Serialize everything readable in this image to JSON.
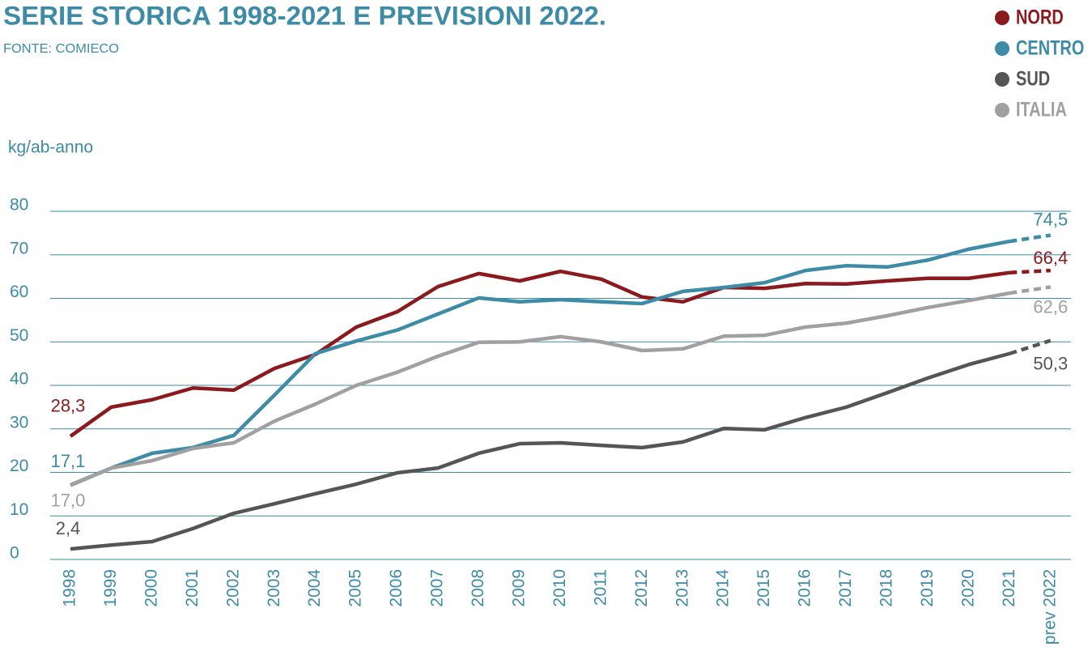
{
  "chart_data": {
    "type": "line",
    "title": "SERIE STORICA 1998-2021 E PREVISIONI 2022.",
    "subtitle": "FONTE: COMIECO",
    "y_label": "kg/ab-anno",
    "categories": [
      "1998",
      "1999",
      "2000",
      "2001",
      "2002",
      "2003",
      "2004",
      "2005",
      "2006",
      "2007",
      "2008",
      "2009",
      "2010",
      "2011",
      "2012",
      "2013",
      "2014",
      "2015",
      "2016",
      "2017",
      "2018",
      "2019",
      "2020",
      "2021",
      "prev 2022"
    ],
    "ylim": [
      0,
      80
    ],
    "yticks": [
      0,
      10,
      20,
      30,
      40,
      50,
      60,
      70,
      80
    ],
    "grid": true,
    "legend": "top-right",
    "dashed_last_segment": true,
    "series": [
      {
        "name": "NORD",
        "color": "#8b1a1e",
        "values": [
          28.3,
          35.0,
          36.7,
          39.4,
          38.9,
          43.9,
          47.1,
          53.4,
          56.9,
          62.7,
          65.7,
          64.0,
          66.2,
          64.4,
          60.3,
          59.2,
          62.5,
          62.3,
          63.4,
          63.3,
          64.0,
          64.6,
          64.6,
          65.9,
          66.4
        ],
        "value_labels": [
          "28,3",
          null,
          null,
          null,
          null,
          null,
          null,
          null,
          null,
          null,
          null,
          null,
          null,
          null,
          null,
          null,
          null,
          null,
          null,
          null,
          null,
          null,
          null,
          null,
          "66,4"
        ]
      },
      {
        "name": "CENTRO",
        "color": "#3d8ba6",
        "values": [
          17.1,
          21.0,
          24.4,
          25.7,
          28.5,
          37.8,
          47.3,
          50.2,
          52.7,
          56.4,
          60.1,
          59.2,
          59.7,
          59.2,
          58.8,
          61.6,
          62.5,
          63.6,
          66.4,
          67.5,
          67.2,
          68.8,
          71.3,
          73.1,
          74.5
        ],
        "value_labels": [
          "17,1",
          null,
          null,
          null,
          null,
          null,
          null,
          null,
          null,
          null,
          null,
          null,
          null,
          null,
          null,
          null,
          null,
          null,
          null,
          null,
          null,
          null,
          null,
          null,
          "74,5"
        ]
      },
      {
        "name": "SUD",
        "color": "#555555",
        "values": [
          2.4,
          3.3,
          4.1,
          7.1,
          10.6,
          12.8,
          15.1,
          17.3,
          19.9,
          21.0,
          24.4,
          26.6,
          26.8,
          26.2,
          25.7,
          27.0,
          30.1,
          29.8,
          32.6,
          35.0,
          38.3,
          41.7,
          44.8,
          47.3,
          50.3
        ],
        "value_labels": [
          "2,4",
          null,
          null,
          null,
          null,
          null,
          null,
          null,
          null,
          null,
          null,
          null,
          null,
          null,
          null,
          null,
          null,
          null,
          null,
          null,
          null,
          null,
          null,
          null,
          "50,3"
        ]
      },
      {
        "name": "ITALIA",
        "color": "#a0a0a0",
        "values": [
          17.0,
          21.0,
          22.7,
          25.5,
          26.8,
          31.8,
          35.7,
          40.0,
          43.0,
          46.7,
          49.9,
          50.0,
          51.2,
          50.0,
          48.0,
          48.4,
          51.3,
          51.5,
          53.4,
          54.3,
          56.0,
          57.9,
          59.5,
          61.2,
          62.6
        ],
        "value_labels": [
          "17,0",
          null,
          null,
          null,
          null,
          null,
          null,
          null,
          null,
          null,
          null,
          null,
          null,
          null,
          null,
          null,
          null,
          null,
          null,
          null,
          null,
          null,
          null,
          null,
          "62,6"
        ]
      }
    ]
  }
}
